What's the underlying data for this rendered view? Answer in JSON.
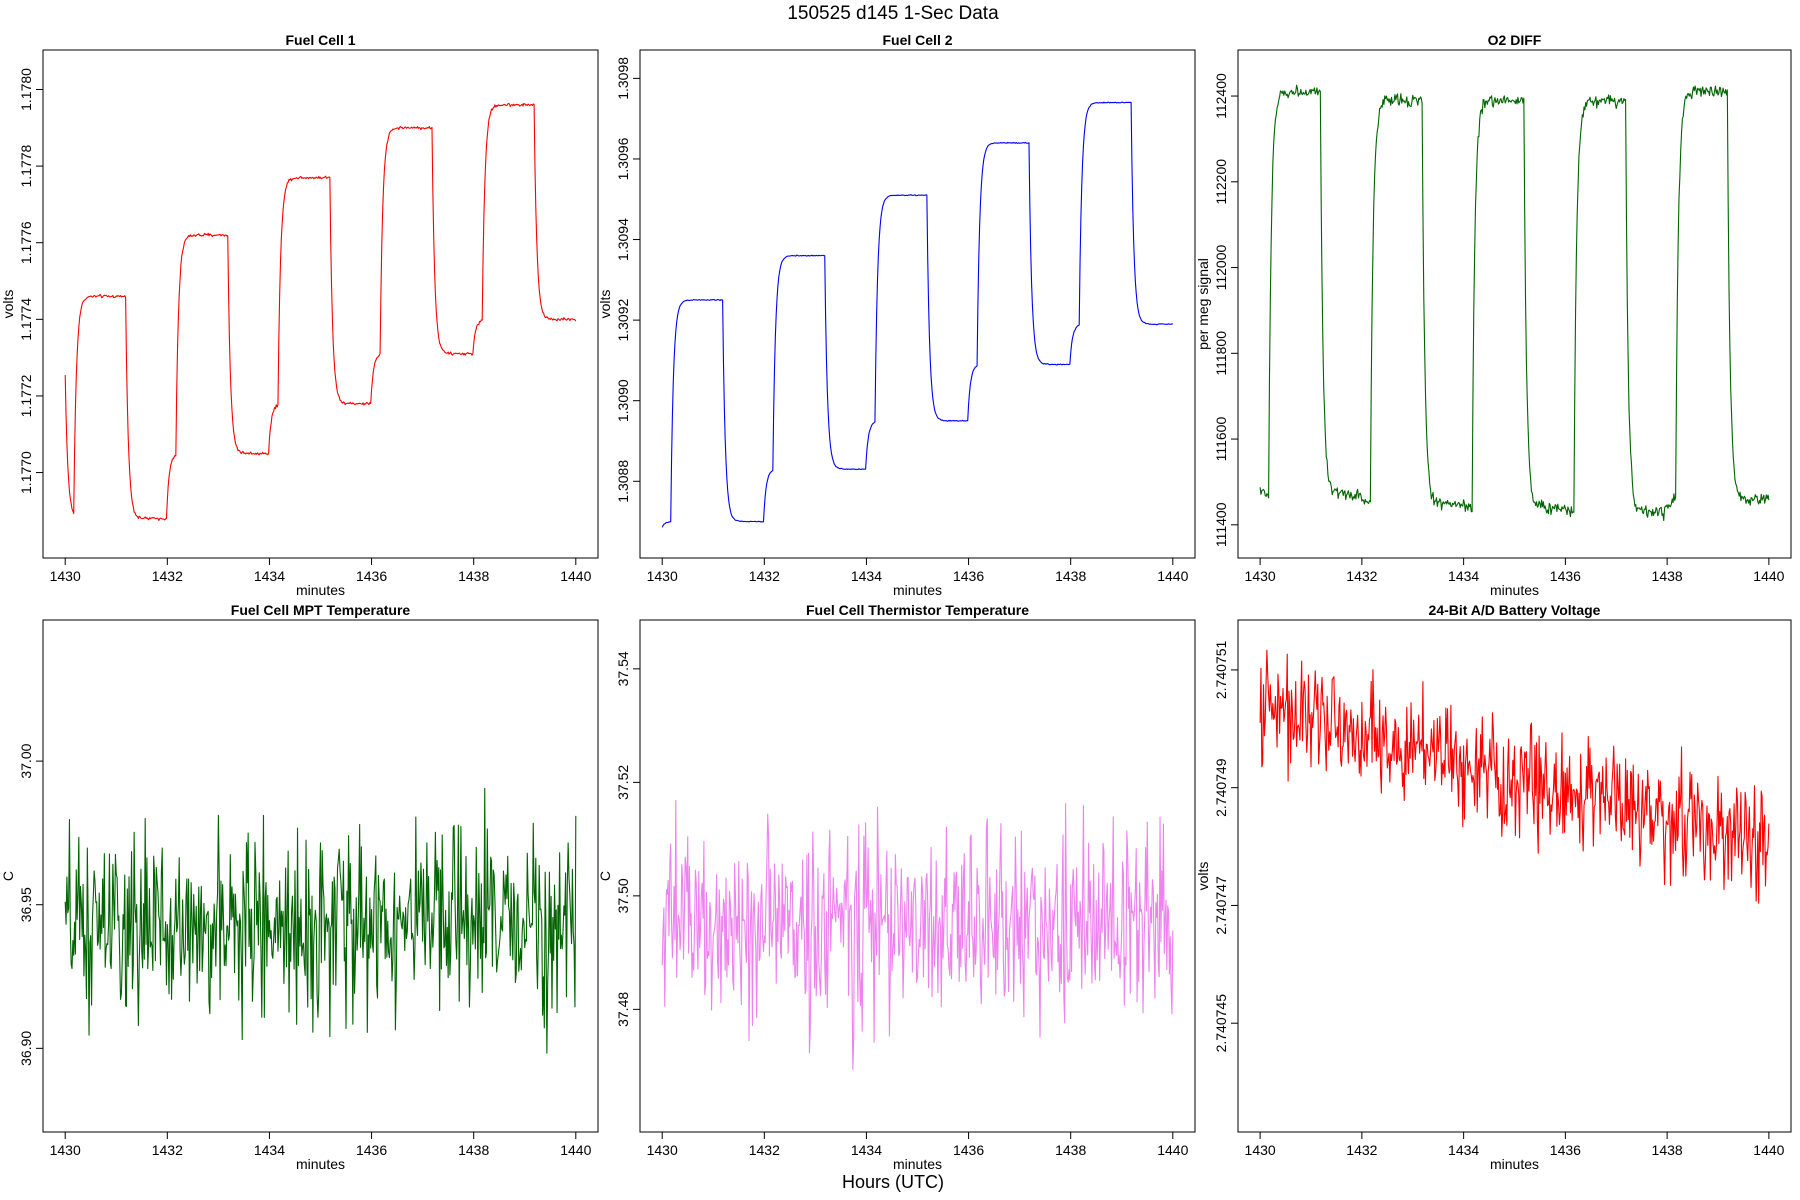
{
  "figure": {
    "title": "150525   d145   1-Sec Data",
    "xlabel": "Hours (UTC)"
  },
  "chart_data": [
    {
      "type": "line",
      "title": "Fuel Cell 1",
      "xlabel": "minutes",
      "ylabel": "volts",
      "color": "#ff0000",
      "xlim": [
        1430,
        1440
      ],
      "ylim": [
        1.17683,
        1.17805
      ],
      "xticks": [
        "1430",
        "1432",
        "1434",
        "1436",
        "1438",
        "1440"
      ],
      "yticks": [
        "1.1770",
        "1.1772",
        "1.1774",
        "1.1776",
        "1.1778",
        "1.1780"
      ],
      "profile": {
        "kind": "square",
        "low": [
          1.17688,
          1.17705,
          1.17718,
          1.17731,
          1.1774
        ],
        "high": [
          1.17746,
          1.17762,
          1.17777,
          1.1779,
          1.17796
        ],
        "start": 1.1774,
        "noise": 2.8e-06
      }
    },
    {
      "type": "line",
      "title": "Fuel Cell 2",
      "xlabel": "minutes",
      "ylabel": "volts",
      "color": "#0000ff",
      "xlim": [
        1430,
        1440
      ],
      "ylim": [
        1.30866,
        1.30982
      ],
      "xticks": [
        "1430",
        "1432",
        "1434",
        "1436",
        "1438",
        "1440"
      ],
      "yticks": [
        "1.3088",
        "1.3090",
        "1.3092",
        "1.3094",
        "1.3096",
        "1.3098"
      ],
      "profile": {
        "kind": "square",
        "low": [
          1.3087,
          1.30883,
          1.30895,
          1.30909,
          1.30919
        ],
        "high": [
          1.30925,
          1.30936,
          1.30951,
          1.30964,
          1.30974
        ],
        "start": 1.30868,
        "noise": 9e-07
      }
    },
    {
      "type": "line",
      "title": "O2 DIFF",
      "xlabel": "minutes",
      "ylabel": "per meg signal",
      "color": "#006400",
      "xlim": [
        1430,
        1440
      ],
      "ylim": [
        111370,
        112460
      ],
      "xticks": [
        "1430",
        "1432",
        "1434",
        "1436",
        "1438",
        "1440"
      ],
      "yticks": [
        "111400",
        "111600",
        "111800",
        "112000",
        "112200",
        "112400"
      ],
      "profile": {
        "kind": "square",
        "low": [
          111470,
          111450,
          111440,
          111430,
          111460
        ],
        "high": [
          112410,
          112390,
          112390,
          112390,
          112410
        ],
        "start": 111490,
        "noise": 10
      }
    },
    {
      "type": "line",
      "title": "Fuel Cell MPT Temperature",
      "xlabel": "minutes",
      "ylabel": "C",
      "color": "#006400",
      "xlim": [
        1430,
        1440
      ],
      "ylim": [
        36.878,
        37.042
      ],
      "xticks": [
        "1430",
        "1432",
        "1434",
        "1436",
        "1438",
        "1440"
      ],
      "yticks": [
        "36.90",
        "36.95",
        "37.00"
      ],
      "profile": {
        "kind": "noise",
        "mean": 36.943,
        "spread": 0.04,
        "trend": 0.004
      }
    },
    {
      "type": "line",
      "title": "Fuel Cell Thermistor Temperature",
      "xlabel": "minutes",
      "ylabel": "C",
      "color": "#ee82ee",
      "xlim": [
        1430,
        1440
      ],
      "ylim": [
        37.462,
        37.545
      ],
      "xticks": [
        "1430",
        "1432",
        "1434",
        "1436",
        "1438",
        "1440"
      ],
      "yticks": [
        "37.48",
        "37.50",
        "37.52",
        "37.54"
      ],
      "profile": {
        "kind": "noise",
        "mean": 37.495,
        "spread": 0.022,
        "trend": 0
      }
    },
    {
      "type": "line",
      "title": "24-Bit A/D Battery Voltage",
      "xlabel": "minutes",
      "ylabel": "volts",
      "color": "#ff0000",
      "xlim": [
        1430,
        1440
      ],
      "ylim": [
        2.7407435,
        2.7407515
      ],
      "xticks": [
        "1430",
        "1432",
        "1434",
        "1436",
        "1438",
        "1440"
      ],
      "yticks": [
        "2.740745",
        "2.740747",
        "2.740749",
        "2.740751"
      ],
      "profile": {
        "kind": "noise",
        "mean": 2.7407492,
        "spread": 1.2e-06,
        "trend": -2.4e-06
      }
    }
  ]
}
